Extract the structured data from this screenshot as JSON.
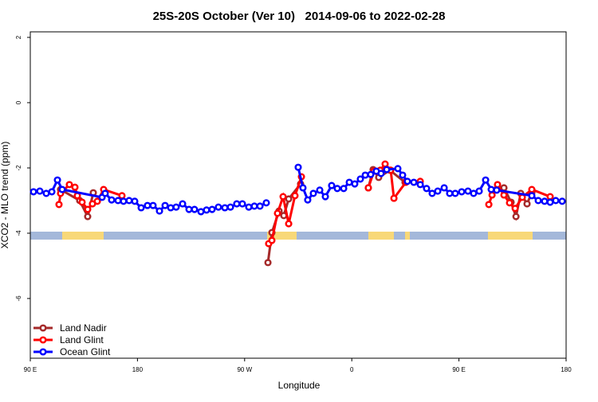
{
  "chart_data": {
    "type": "line",
    "title": "25S-20S October (Ver 10)   2014-09-06 to 2022-02-28",
    "x_label": "Longitude",
    "y_label": "XCO2 - MLO trend (ppm)",
    "xlim": [
      90,
      540
    ],
    "ylim": [
      -7.83,
      2.17
    ],
    "xticks": [
      {
        "value": 90,
        "label": "90 E"
      },
      {
        "value": 180,
        "label": "180"
      },
      {
        "value": 270,
        "label": "90 W"
      },
      {
        "value": 360,
        "label": "0"
      },
      {
        "value": 450,
        "label": "90 E"
      },
      {
        "value": 540,
        "label": "180"
      }
    ],
    "yticks": [
      2,
      0,
      -2,
      -4,
      -6
    ],
    "legend": "bottom-left",
    "series": [
      {
        "name": "Land Nadir",
        "color": "#a52a2a",
        "x": [
          115.4,
          131.5,
          138.2,
          142.9,
          null,
          289.6,
          292.9,
          298.9,
          302.9,
          307.0,
          317.0,
          null,
          373.9,
          377.9,
          382.6,
          392.0,
          404.7,
          null,
          482.4,
          487.8,
          493.8,
          497.9,
          501.9,
          507.2,
          511.2
        ],
        "values": [
          -2.66,
          -3.0,
          -3.49,
          -2.76,
          null,
          -4.9,
          -3.98,
          -3.32,
          -3.46,
          -2.95,
          -2.49,
          null,
          -2.61,
          -2.05,
          -2.29,
          -2.07,
          -2.44,
          null,
          -2.61,
          -2.61,
          -3.05,
          -3.49,
          -2.78,
          -3.1,
          -2.76
        ]
      },
      {
        "name": "Land Glint",
        "color": "#ff0000",
        "x": [
          114.1,
          115.4,
          122.8,
          127.5,
          129.5,
          133.5,
          138.2,
          142.2,
          146.3,
          151.6,
          167.0,
          null,
          290.2,
          292.9,
          297.6,
          302.3,
          307.0,
          312.3,
          317.7,
          null,
          373.9,
          378.6,
          383.9,
          388.0,
          392.7,
          395.4,
          405.4,
          417.5,
          null,
          475.1,
          477.8,
          482.4,
          487.8,
          492.5,
          497.2,
          503.2,
          511.2,
          526.6
        ],
        "values": [
          -3.12,
          -2.78,
          -2.51,
          -2.59,
          -2.85,
          -3.05,
          -3.27,
          -3.1,
          -3.02,
          -2.66,
          -2.85,
          null,
          -4.32,
          -4.22,
          -3.39,
          -2.88,
          -3.71,
          -2.85,
          -2.27,
          null,
          -2.61,
          -2.1,
          -2.07,
          -1.88,
          -2.07,
          -2.93,
          -2.44,
          -2.41,
          null,
          -3.12,
          -2.83,
          -2.51,
          -2.83,
          -3.07,
          -3.24,
          -2.9,
          -2.66,
          -2.88
        ]
      },
      {
        "name": "Ocean Glint",
        "color": "#0000ff",
        "x": [
          92.7,
          98.0,
          103.4,
          108.1,
          112.8,
          116.8,
          150.3,
          152.9,
          158.3,
          163.7,
          168.3,
          173.0,
          177.7,
          183.1,
          188.4,
          193.1,
          198.5,
          203.2,
          207.9,
          212.5,
          217.9,
          223.3,
          227.9,
          233.3,
          238.0,
          242.7,
          248.0,
          253.4,
          258.1,
          263.4,
          268.1,
          273.5,
          278.2,
          282.9,
          288.2,
          null,
          315.0,
          319.0,
          323.0,
          327.7,
          333.1,
          337.8,
          343.1,
          347.8,
          353.2,
          357.9,
          362.5,
          367.2,
          371.3,
          375.9,
          380.6,
          384.6,
          389.3,
          398.7,
          402.7,
          406.7,
          412.1,
          417.5,
          422.8,
          427.5,
          432.2,
          437.6,
          442.2,
          446.9,
          452.3,
          457.6,
          462.3,
          467.0,
          472.4,
          477.1,
          481.7,
          511.2,
          516.6,
          521.9,
          526.6,
          531.3,
          536.7
        ],
        "values": [
          -2.73,
          -2.71,
          -2.78,
          -2.73,
          -2.37,
          -2.66,
          -2.9,
          -2.78,
          -2.98,
          -3.0,
          -3.02,
          -3.0,
          -3.02,
          -3.22,
          -3.15,
          -3.15,
          -3.32,
          -3.15,
          -3.22,
          -3.2,
          -3.1,
          -3.27,
          -3.27,
          -3.34,
          -3.29,
          -3.27,
          -3.2,
          -3.22,
          -3.2,
          -3.1,
          -3.1,
          -3.2,
          -3.17,
          -3.17,
          -3.07,
          null,
          -1.98,
          -2.61,
          -2.98,
          -2.78,
          -2.68,
          -2.88,
          -2.54,
          -2.63,
          -2.63,
          -2.44,
          -2.49,
          -2.34,
          -2.22,
          -2.2,
          -2.1,
          -2.17,
          -2.05,
          -2.02,
          -2.22,
          -2.41,
          -2.44,
          -2.51,
          -2.63,
          -2.78,
          -2.71,
          -2.61,
          -2.78,
          -2.78,
          -2.73,
          -2.71,
          -2.78,
          -2.71,
          -2.37,
          -2.66,
          -2.68,
          -2.85,
          -3.0,
          -3.02,
          -3.05,
          -3.0,
          -3.02
        ]
      }
    ]
  }
}
